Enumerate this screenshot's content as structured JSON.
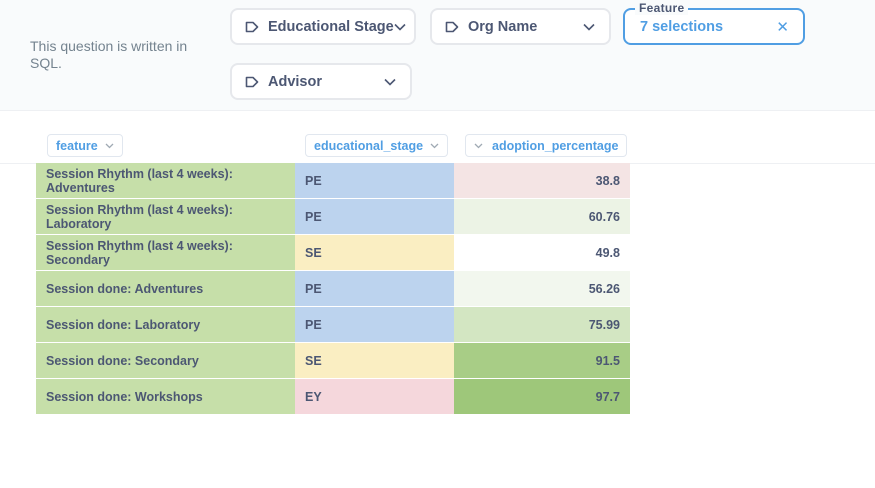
{
  "note": "This question is written in SQL.",
  "filters": [
    {
      "label": "Educational Stage",
      "icon": "tag-icon"
    },
    {
      "label": "Org Name",
      "icon": "tag-icon"
    },
    {
      "legend": "Feature",
      "label": "7 selections"
    },
    {
      "label": "Advisor",
      "icon": "tag-icon"
    }
  ],
  "columns": [
    "feature",
    "educational_stage",
    "adoption_percentage"
  ],
  "rows": [
    {
      "feature": "Session Rhythm (last 4 weeks): Adventures",
      "stage": "PE",
      "value": "38.8"
    },
    {
      "feature": "Session Rhythm (last 4 weeks): Laboratory",
      "stage": "PE",
      "value": "60.76"
    },
    {
      "feature": "Session Rhythm (last 4 weeks): Secondary",
      "stage": "SE",
      "value": "49.8"
    },
    {
      "feature": "Session done: Adventures",
      "stage": "PE",
      "value": "56.26"
    },
    {
      "feature": "Session done: Laboratory",
      "stage": "PE",
      "value": "75.99"
    },
    {
      "feature": "Session done: Secondary",
      "stage": "SE",
      "value": "91.5"
    },
    {
      "feature": "Session done: Workshops",
      "stage": "EY",
      "value": "97.7"
    }
  ],
  "colors": {
    "accent": "#509ee3",
    "feature_cell": "#c6dfa9",
    "stage_PE": "#bcd3ee",
    "stage_SE": "#faeec2",
    "stage_EY": "#f5d7dc",
    "value_low": "#f4e3e3",
    "value_mid": "#ffffff",
    "value_high": "#9ec77a"
  }
}
